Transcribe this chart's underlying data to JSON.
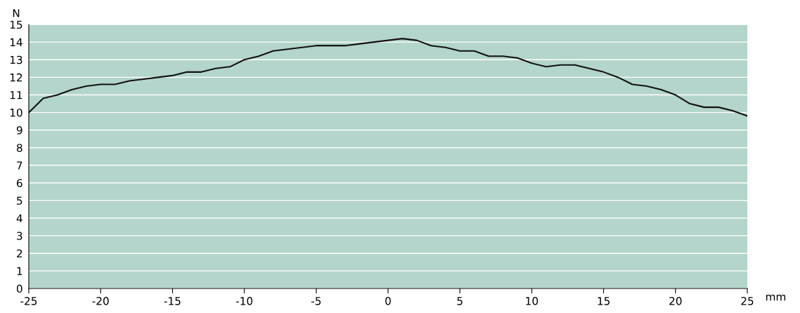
{
  "chart_data": {
    "type": "line",
    "xlabel": "mm",
    "ylabel": "N",
    "x": [
      -25,
      -24,
      -23,
      -22,
      -21,
      -20,
      -19,
      -18,
      -17,
      -16,
      -15,
      -14,
      -13,
      -12,
      -11,
      -10,
      -9,
      -8,
      -7,
      -6,
      -5,
      -4,
      -3,
      -2,
      -1,
      0,
      1,
      2,
      3,
      4,
      5,
      6,
      7,
      8,
      9,
      10,
      11,
      12,
      13,
      14,
      15,
      16,
      17,
      18,
      19,
      20,
      21,
      22,
      23,
      24,
      25
    ],
    "series": [
      {
        "color": "#111111",
        "values": [
          10.0,
          10.8,
          11.0,
          11.3,
          11.5,
          11.6,
          11.6,
          11.8,
          11.9,
          12.0,
          12.1,
          12.3,
          12.3,
          12.5,
          12.6,
          13.0,
          13.2,
          13.5,
          13.6,
          13.7,
          13.8,
          13.8,
          13.8,
          13.9,
          14.0,
          14.1,
          14.2,
          14.1,
          13.8,
          13.7,
          13.5,
          13.5,
          13.2,
          13.2,
          13.1,
          12.8,
          12.6,
          12.7,
          12.7,
          12.5,
          12.3,
          12.0,
          11.6,
          11.5,
          11.3,
          11.0,
          10.5,
          10.3,
          10.3,
          10.1,
          9.8
        ]
      }
    ],
    "xlim": [
      -25,
      25
    ],
    "xticks": [
      -25,
      -20,
      -15,
      -10,
      -5,
      0,
      5,
      10,
      15,
      20,
      25
    ],
    "ylim": [
      0,
      15
    ],
    "yticks": [
      0,
      1,
      2,
      3,
      4,
      5,
      6,
      7,
      8,
      9,
      10,
      11,
      12,
      13,
      14,
      15
    ],
    "grid": "y",
    "line_style": "solid",
    "marker": "none"
  }
}
